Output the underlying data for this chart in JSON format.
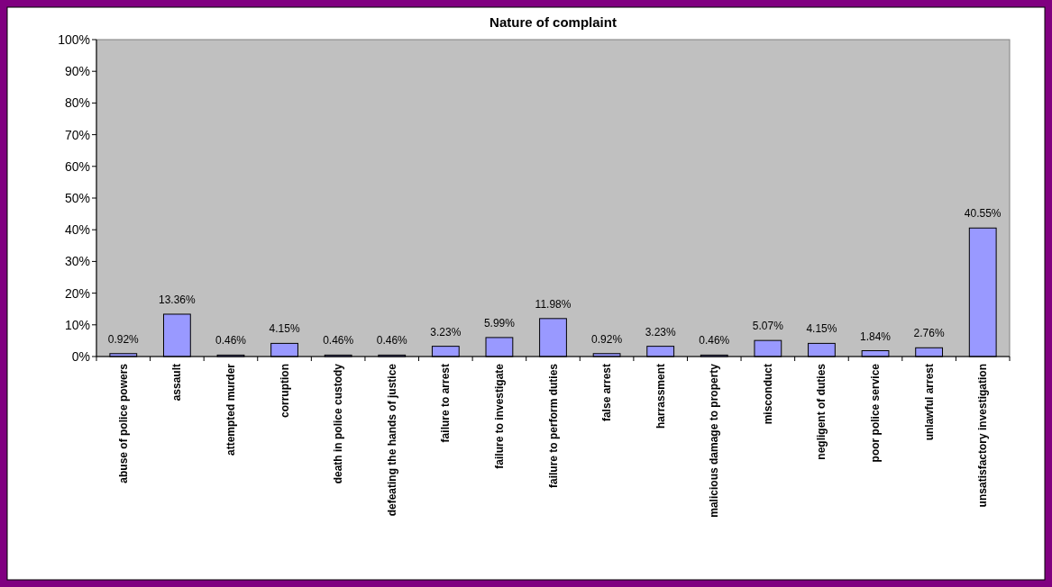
{
  "chart_data": {
    "type": "bar",
    "title": "Nature of complaint",
    "categories": [
      "abuse of police powers",
      "assault",
      "attempted murder",
      "corruption",
      "death in police custody",
      "defeating the hands of justice",
      "failure to arrest",
      "failure to investigate",
      "failure to perform duties",
      "false arrest",
      "harrassment",
      "malicious damage to property",
      "misconduct",
      "negligent of duties",
      "poor police service",
      "unlawful arrest",
      "unsatisfactory investigation"
    ],
    "values": [
      0.92,
      13.36,
      0.46,
      4.15,
      0.46,
      0.46,
      3.23,
      5.99,
      11.98,
      0.92,
      3.23,
      0.46,
      5.07,
      4.15,
      1.84,
      2.76,
      40.55
    ],
    "value_labels": [
      "0.92%",
      "13.36%",
      "0.46%",
      "4.15%",
      "0.46%",
      "0.46%",
      "3.23%",
      "5.99%",
      "11.98%",
      "0.92%",
      "3.23%",
      "0.46%",
      "5.07%",
      "4.15%",
      "1.84%",
      "2.76%",
      "40.55%"
    ],
    "color": "#9999ff",
    "ylim": [
      0,
      100
    ],
    "yticks": [
      {
        "value": 0,
        "label": "0%"
      },
      {
        "value": 10,
        "label": "10%"
      },
      {
        "value": 20,
        "label": "20%"
      },
      {
        "value": 30,
        "label": "30%"
      },
      {
        "value": 40,
        "label": "40%"
      },
      {
        "value": 50,
        "label": "50%"
      },
      {
        "value": 60,
        "label": "60%"
      },
      {
        "value": 70,
        "label": "70%"
      },
      {
        "value": 80,
        "label": "80%"
      },
      {
        "value": 90,
        "label": "90%"
      },
      {
        "value": 100,
        "label": "100%"
      }
    ],
    "grid": false
  }
}
